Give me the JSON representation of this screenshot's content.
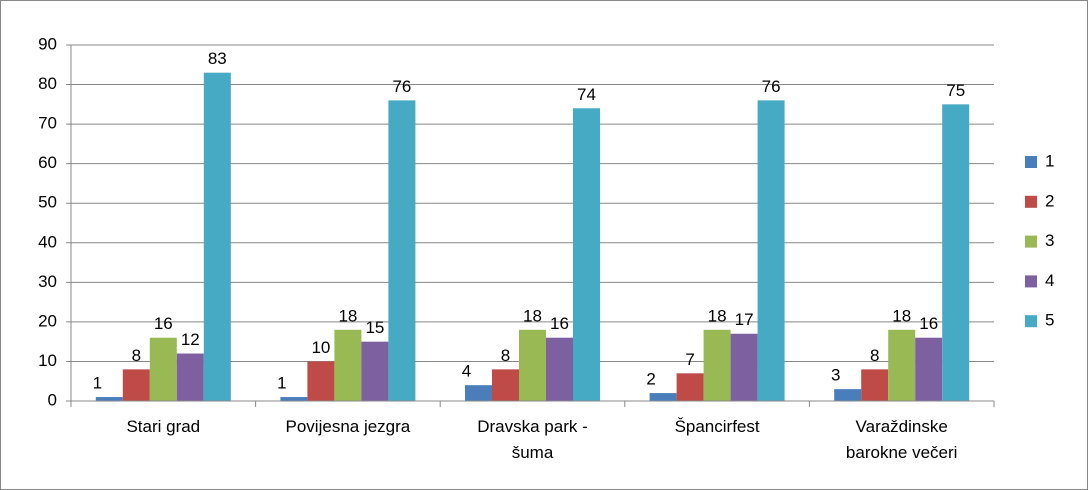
{
  "chart_data": {
    "type": "bar",
    "categories": [
      "Stari grad",
      "Povijesna jezgra",
      "Dravska park - šuma",
      "Špancirfest",
      "Varaždinske barokne večeri"
    ],
    "series": [
      {
        "name": "1",
        "color": "#4a7ebb",
        "values": [
          1,
          1,
          4,
          2,
          3
        ]
      },
      {
        "name": "2",
        "color": "#be4b48",
        "values": [
          8,
          10,
          8,
          7,
          8
        ]
      },
      {
        "name": "3",
        "color": "#98b954",
        "values": [
          16,
          18,
          18,
          18,
          18
        ]
      },
      {
        "name": "4",
        "color": "#7d60a0",
        "values": [
          12,
          15,
          16,
          17,
          16
        ]
      },
      {
        "name": "5",
        "color": "#46aac5",
        "values": [
          83,
          76,
          74,
          76,
          75
        ]
      }
    ],
    "ylim": [
      0,
      90
    ],
    "yticks": [
      0,
      10,
      20,
      30,
      40,
      50,
      60,
      70,
      80,
      90
    ],
    "grid": true,
    "legend": "right"
  }
}
